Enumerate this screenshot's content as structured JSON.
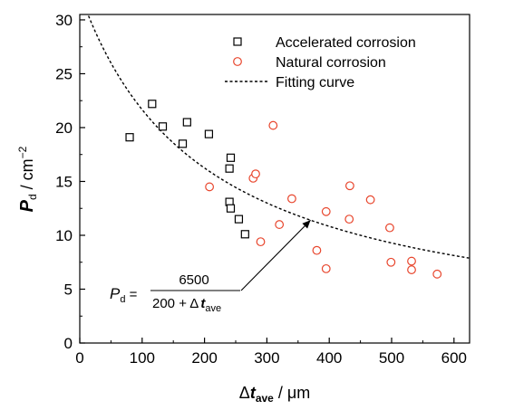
{
  "chart_data": {
    "type": "scatter",
    "title": "",
    "xlabel": {
      "prefix": "Δ",
      "var": "t",
      "sub": "ave",
      "unit": " / μm"
    },
    "ylabel": {
      "var": "P",
      "sub": "d",
      "unit": " / cm",
      "sup": "−2"
    },
    "xlim": [
      0,
      625
    ],
    "ylim": [
      0,
      30.5
    ],
    "x_ticks": [
      0,
      100,
      200,
      300,
      400,
      500,
      600
    ],
    "y_ticks": [
      0,
      5,
      10,
      15,
      20,
      25,
      30
    ],
    "grid": false,
    "legend_position": "top-right",
    "series": [
      {
        "name": "Accelerated corrosion",
        "marker": "square",
        "color": "#000000",
        "points": [
          [
            80,
            19.1
          ],
          [
            116,
            22.2
          ],
          [
            133,
            20.1
          ],
          [
            165,
            18.5
          ],
          [
            172,
            20.5
          ],
          [
            207,
            19.4
          ],
          [
            240,
            16.2
          ],
          [
            242,
            17.2
          ],
          [
            240,
            13.1
          ],
          [
            242,
            12.5
          ],
          [
            255,
            11.5
          ],
          [
            265,
            10.1
          ]
        ]
      },
      {
        "name": "Natural corrosion",
        "marker": "circle",
        "color": "#e8452c",
        "points": [
          [
            208,
            14.5
          ],
          [
            278,
            15.3
          ],
          [
            282,
            15.7
          ],
          [
            290,
            9.4
          ],
          [
            310,
            20.2
          ],
          [
            320,
            11.0
          ],
          [
            340,
            13.4
          ],
          [
            380,
            8.6
          ],
          [
            395,
            12.2
          ],
          [
            395,
            6.9
          ],
          [
            432,
            11.5
          ],
          [
            433,
            14.6
          ],
          [
            466,
            13.3
          ],
          [
            497,
            10.7
          ],
          [
            499,
            7.5
          ],
          [
            532,
            7.6
          ],
          [
            532,
            6.8
          ],
          [
            573,
            6.4
          ]
        ]
      }
    ],
    "fit": {
      "name": "Fitting curve",
      "style": "dashed",
      "a": 6500,
      "b": 200
    },
    "annotation": {
      "lhs_var": "P",
      "lhs_sub": "d",
      "equals": "=",
      "numerator": "6500",
      "denominator_prefix": "200 +  Δ",
      "denominator_var": "t",
      "denominator_sub": "ave",
      "arrow_target_x": 370
    }
  }
}
